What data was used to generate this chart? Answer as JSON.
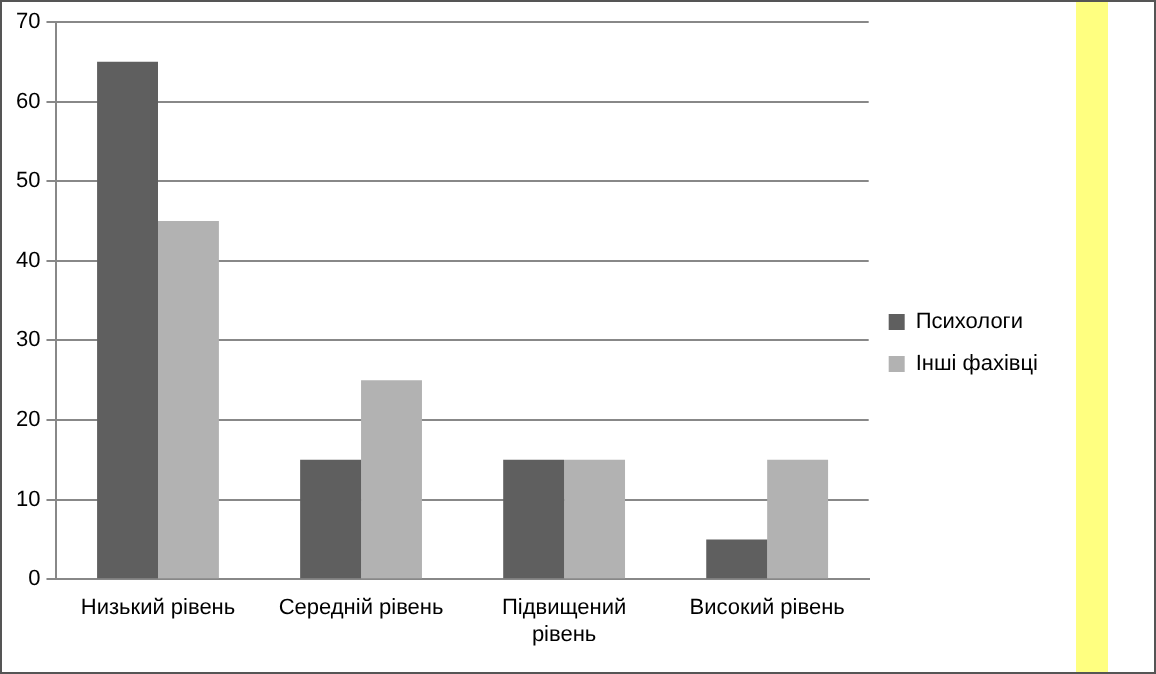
{
  "chart_data": {
    "type": "bar",
    "categories": [
      "Низький рівень",
      "Середній рівень",
      "Підвищений рівень",
      "Високий рівень"
    ],
    "series": [
      {
        "name": "Психологи",
        "color": "#5f5f5f",
        "values": [
          65,
          15,
          15,
          5
        ]
      },
      {
        "name": "Інші фахівці",
        "color": "#b2b2b2",
        "values": [
          45,
          25,
          15,
          15
        ]
      }
    ],
    "ylim": [
      0,
      70
    ],
    "yticks": [
      0,
      10,
      20,
      30,
      40,
      50,
      60,
      70
    ],
    "grid": "y",
    "legend": "right"
  }
}
